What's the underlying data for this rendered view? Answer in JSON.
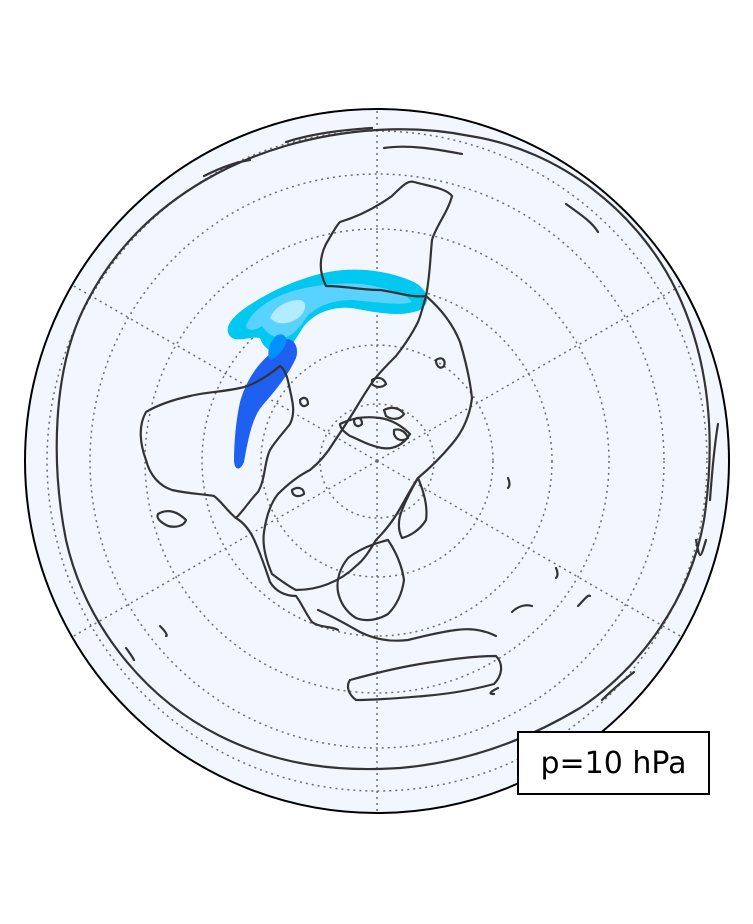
{
  "map": {
    "projection": "orthographic-north-polar",
    "background_color": "#f2f7ff",
    "contour_colors": [
      "#00c8f0",
      "#5ad2ff",
      "#2060f0",
      "#0090ff"
    ],
    "pressure_label": "p=10 hPa"
  }
}
